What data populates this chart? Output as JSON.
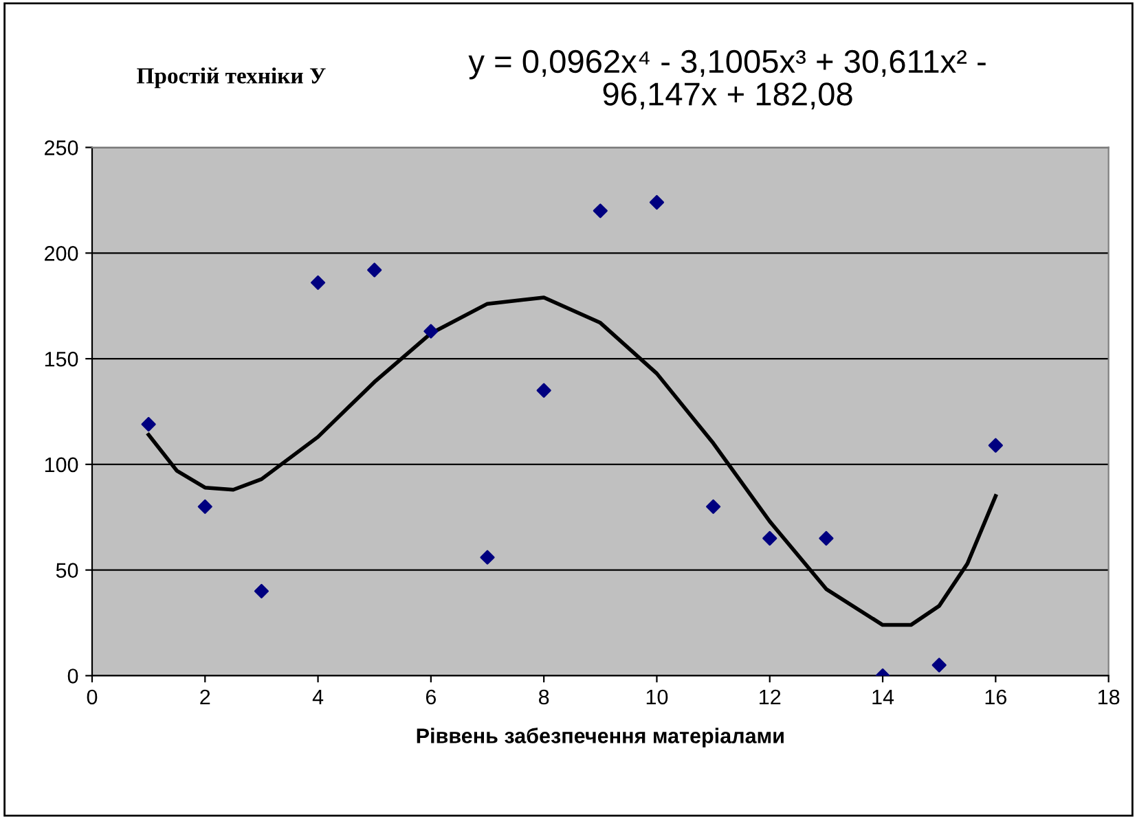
{
  "chart_data": {
    "type": "scatter",
    "title": "Простій техніки У",
    "xlabel": "Ріввень забезпечення матеріалами",
    "annotations": [
      "y = 0,0962x⁴ - 3,1005x³ + 30,611x² -\n96,147x + 182,08"
    ],
    "series": [
      {
        "color": "#000080",
        "marker": "diamond",
        "x": [
          1,
          2,
          3,
          4,
          5,
          6,
          7,
          8,
          9,
          10,
          11,
          12,
          13,
          14,
          15,
          16
        ],
        "values": [
          119,
          80,
          40,
          186,
          192,
          163,
          56,
          135,
          220,
          224,
          80,
          65,
          65,
          0,
          5,
          109
        ]
      },
      {
        "type": "line",
        "color": "#000000",
        "marker": "none",
        "line_style": "solid",
        "x": [
          1,
          1.5,
          2,
          2.5,
          3,
          4,
          5,
          6,
          7,
          8,
          9,
          10,
          11,
          12,
          13,
          14,
          14.5,
          15,
          15.5,
          16
        ],
        "values": [
          114,
          97,
          89,
          88,
          93,
          113,
          139,
          162,
          176,
          179,
          167,
          143,
          110,
          73,
          41,
          24,
          24,
          33,
          53,
          85
        ]
      }
    ],
    "xlim": [
      0,
      18
    ],
    "xticks": [
      0,
      2,
      4,
      6,
      8,
      10,
      12,
      14,
      16,
      18
    ],
    "ylim": [
      0,
      250
    ],
    "yticks": [
      0,
      50,
      100,
      150,
      200,
      250
    ],
    "grid": "y",
    "legend": false
  }
}
